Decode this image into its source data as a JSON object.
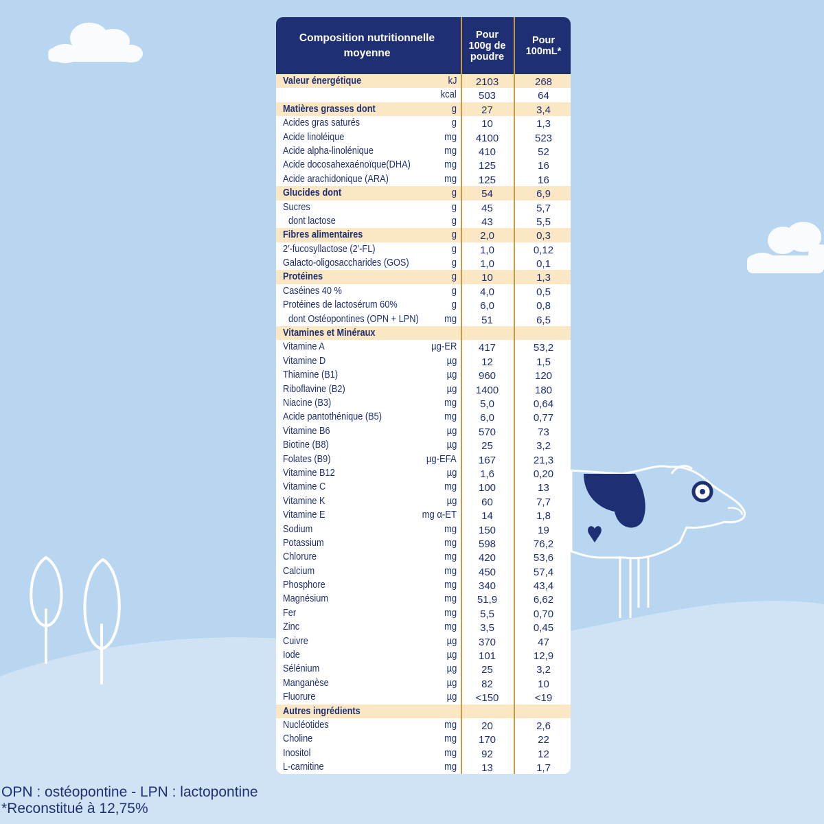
{
  "header": {
    "title": "Composition nutritionnelle\nmoyenne",
    "col1": "Pour\n100g de\npoudre",
    "col2": "Pour\n100mL*"
  },
  "rows": [
    {
      "name": "Valeur énergétique",
      "unit": "kJ",
      "v1": "2103",
      "v2": "268",
      "section": true
    },
    {
      "name": "",
      "unit": "kcal",
      "v1": "503",
      "v2": "64"
    },
    {
      "name": "Matières grasses dont",
      "unit": "g",
      "v1": "27",
      "v2": "3,4",
      "section": true
    },
    {
      "name": "Acides gras saturés",
      "unit": "g",
      "v1": "10",
      "v2": "1,3"
    },
    {
      "name": "Acide linoléique",
      "unit": "mg",
      "v1": "4100",
      "v2": "523"
    },
    {
      "name": "Acide alpha-linolénique",
      "unit": "mg",
      "v1": "410",
      "v2": "52"
    },
    {
      "name": "Acide docosahexaénoïque(DHA)",
      "unit": "mg",
      "v1": "125",
      "v2": "16"
    },
    {
      "name": "Acide arachidonique (ARA)",
      "unit": "mg",
      "v1": "125",
      "v2": "16"
    },
    {
      "name": "Glucides dont",
      "unit": "g",
      "v1": "54",
      "v2": "6,9",
      "section": true
    },
    {
      "name": "Sucres",
      "unit": "g",
      "v1": "45",
      "v2": "5,7"
    },
    {
      "name": "dont lactose",
      "unit": "g",
      "v1": "43",
      "v2": "5,5",
      "indent": true
    },
    {
      "name": "Fibres alimentaires",
      "unit": "g",
      "v1": "2,0",
      "v2": "0,3",
      "section": true
    },
    {
      "name": "2′-fucosyllactose (2′-FL)",
      "unit": "g",
      "v1": "1,0",
      "v2": "0,12"
    },
    {
      "name": "Galacto-oligosaccharides (GOS)",
      "unit": "g",
      "v1": "1,0",
      "v2": "0,1"
    },
    {
      "name": "Protéines",
      "unit": "g",
      "v1": "10",
      "v2": "1,3",
      "section": true
    },
    {
      "name": "Caséines 40 %",
      "unit": "g",
      "v1": "4,0",
      "v2": "0,5"
    },
    {
      "name": "Protéines de lactosérum 60%",
      "unit": "g",
      "v1": "6,0",
      "v2": "0,8"
    },
    {
      "name": "dont Ostéopontines (OPN + LPN)",
      "unit": "mg",
      "v1": "51",
      "v2": "6,5",
      "indent": true
    },
    {
      "name": "Vitamines et Minéraux",
      "unit": "",
      "v1": "",
      "v2": "",
      "section": true
    },
    {
      "name": "Vitamine A",
      "unit": "µg-ER",
      "v1": "417",
      "v2": "53,2"
    },
    {
      "name": "Vitamine D",
      "unit": "µg",
      "v1": "12",
      "v2": "1,5"
    },
    {
      "name": "Thiamine (B1)",
      "unit": "µg",
      "v1": "960",
      "v2": "120"
    },
    {
      "name": "Riboflavine (B2)",
      "unit": "µg",
      "v1": "1400",
      "v2": "180"
    },
    {
      "name": "Niacine (B3)",
      "unit": "mg",
      "v1": "5,0",
      "v2": "0,64"
    },
    {
      "name": "Acide pantothénique (B5)",
      "unit": "mg",
      "v1": "6,0",
      "v2": "0,77"
    },
    {
      "name": "Vitamine B6",
      "unit": "µg",
      "v1": "570",
      "v2": "73"
    },
    {
      "name": "Biotine (B8)",
      "unit": "µg",
      "v1": "25",
      "v2": "3,2"
    },
    {
      "name": "Folates (B9)",
      "unit": "µg-EFA",
      "v1": "167",
      "v2": "21,3"
    },
    {
      "name": "Vitamine B12",
      "unit": "µg",
      "v1": "1,6",
      "v2": "0,20"
    },
    {
      "name": "Vitamine C",
      "unit": "mg",
      "v1": "100",
      "v2": "13"
    },
    {
      "name": "Vitamine K",
      "unit": "µg",
      "v1": "60",
      "v2": "7,7"
    },
    {
      "name": "Vitamine E",
      "unit": "mg α-ET",
      "v1": "14",
      "v2": "1,8"
    },
    {
      "name": "Sodium",
      "unit": "mg",
      "v1": "150",
      "v2": "19"
    },
    {
      "name": "Potassium",
      "unit": "mg",
      "v1": "598",
      "v2": "76,2"
    },
    {
      "name": "Chlorure",
      "unit": "mg",
      "v1": "420",
      "v2": "53,6"
    },
    {
      "name": "Calcium",
      "unit": "mg",
      "v1": "450",
      "v2": "57,4"
    },
    {
      "name": "Phosphore",
      "unit": "mg",
      "v1": "340",
      "v2": "43,4"
    },
    {
      "name": "Magnésium",
      "unit": "mg",
      "v1": "51,9",
      "v2": "6,62"
    },
    {
      "name": "Fer",
      "unit": "mg",
      "v1": "5,5",
      "v2": "0,70"
    },
    {
      "name": "Zinc",
      "unit": "mg",
      "v1": "3,5",
      "v2": "0,45"
    },
    {
      "name": "Cuivre",
      "unit": "µg",
      "v1": "370",
      "v2": "47"
    },
    {
      "name": "Iode",
      "unit": "µg",
      "v1": "101",
      "v2": "12,9"
    },
    {
      "name": "Sélénium",
      "unit": "µg",
      "v1": "25",
      "v2": "3,2"
    },
    {
      "name": "Manganèse",
      "unit": "µg",
      "v1": "82",
      "v2": "10"
    },
    {
      "name": "Fluorure",
      "unit": "µg",
      "v1": "<150",
      "v2": "<19"
    },
    {
      "name": "Autres ingrédients",
      "unit": "",
      "v1": "",
      "v2": "",
      "section": true
    },
    {
      "name": "Nucléotides",
      "unit": "mg",
      "v1": "20",
      "v2": "2,6"
    },
    {
      "name": "Choline",
      "unit": "mg",
      "v1": "170",
      "v2": "22"
    },
    {
      "name": "Inositol",
      "unit": "mg",
      "v1": "92",
      "v2": "12"
    },
    {
      "name": "L-carnitine",
      "unit": "mg",
      "v1": "13",
      "v2": "1,7"
    }
  ],
  "footnotes": {
    "line1": "OPN : ostéopontine - LPN : lactopontine",
    "line2": "*Reconstitué à 12,75%"
  },
  "colors": {
    "background": "#b8d6ef",
    "hills": "#cfe3f5",
    "header": "#1f2f73",
    "section_fill": "#fbe7c3",
    "column_rule": "#c79a43",
    "text": "#1f2f73"
  }
}
